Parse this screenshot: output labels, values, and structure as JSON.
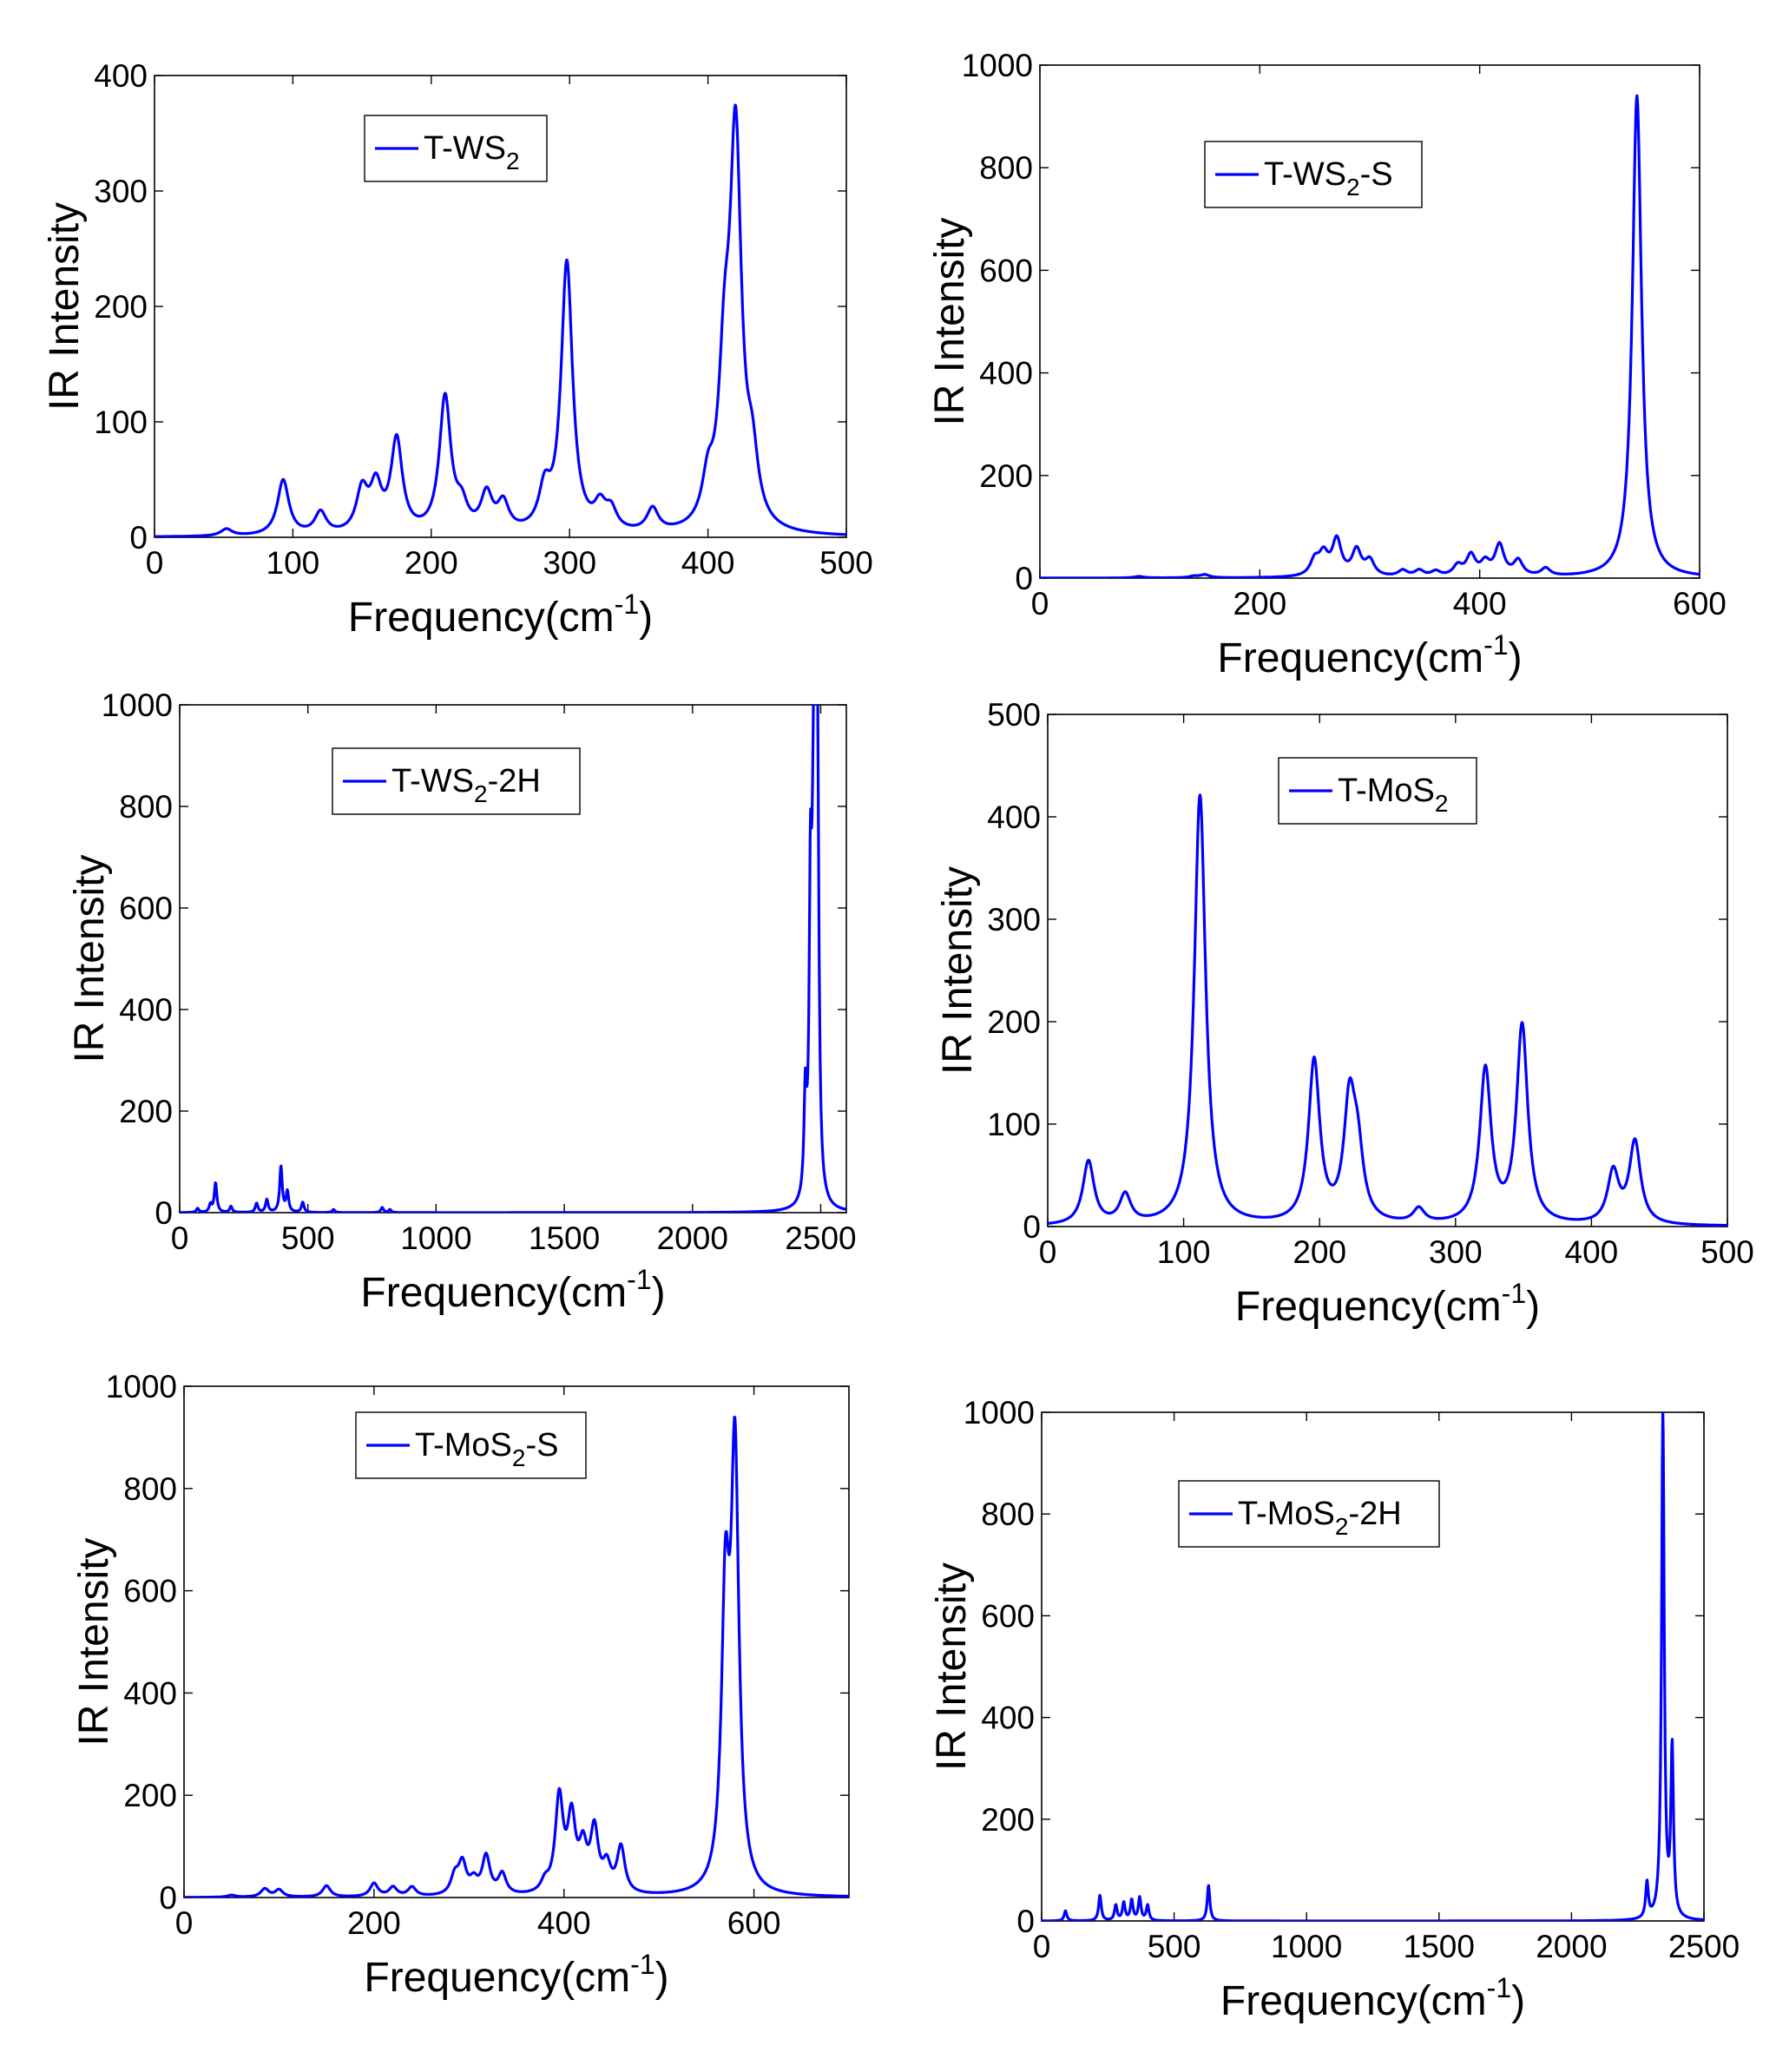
{
  "colors": {
    "line": "#0000ff",
    "axis": "#000000",
    "background": "#ffffff"
  },
  "chart_data": [
    {
      "type": "line",
      "legend": {
        "name": "T-WS",
        "sub": "2",
        "suffix": ""
      },
      "xlabel": {
        "base": "Frequency(cm",
        "sup": "-1",
        "tail": ")"
      },
      "ylabel": "IR Intensity",
      "xlim": [
        0,
        500
      ],
      "ylim": [
        0,
        400
      ],
      "xticks": [
        0,
        100,
        200,
        300,
        400,
        500
      ],
      "yticks": [
        0,
        100,
        200,
        300,
        400
      ],
      "gamma": 5,
      "peaks": [
        [
          52,
          6
        ],
        [
          93,
          48
        ],
        [
          120,
          19
        ],
        [
          150,
          36
        ],
        [
          160,
          38
        ],
        [
          175,
          80
        ],
        [
          210,
          117
        ],
        [
          222,
          20
        ],
        [
          240,
          32
        ],
        [
          252,
          24
        ],
        [
          282,
          33
        ],
        [
          298,
          234
        ],
        [
          322,
          20
        ],
        [
          330,
          17
        ],
        [
          360,
          20
        ],
        [
          400,
          35
        ],
        [
          412,
          120
        ],
        [
          420,
          330
        ],
        [
          432,
          50
        ]
      ]
    },
    {
      "type": "line",
      "legend": {
        "name": "T-WS",
        "sub": "2",
        "suffix": "-S"
      },
      "xlabel": {
        "base": "Frequency(cm",
        "sup": "-1",
        "tail": ")"
      },
      "ylabel": "IR Intensity",
      "xlim": [
        0,
        600
      ],
      "ylim": [
        0,
        1000
      ],
      "xticks": [
        0,
        200,
        400,
        600
      ],
      "yticks": [
        0,
        200,
        400,
        600,
        800,
        1000
      ],
      "gamma": 5,
      "peaks": [
        [
          90,
          3
        ],
        [
          140,
          3
        ],
        [
          150,
          6
        ],
        [
          250,
          30
        ],
        [
          258,
          40
        ],
        [
          270,
          70
        ],
        [
          288,
          50
        ],
        [
          300,
          30
        ],
        [
          330,
          12
        ],
        [
          345,
          12
        ],
        [
          360,
          10
        ],
        [
          380,
          20
        ],
        [
          392,
          40
        ],
        [
          405,
          25
        ],
        [
          418,
          60
        ],
        [
          435,
          30
        ],
        [
          460,
          15
        ],
        [
          543,
          940
        ]
      ]
    },
    {
      "type": "line",
      "legend": {
        "name": "T-WS",
        "sub": "2",
        "suffix": "-2H"
      },
      "xlabel": {
        "base": "Frequency(cm",
        "sup": "-1",
        "tail": ")"
      },
      "ylabel": "IR Intensity",
      "xlim": [
        0,
        2600
      ],
      "ylim": [
        0,
        1000
      ],
      "xticks": [
        0,
        500,
        1000,
        1500,
        2000,
        2500
      ],
      "yticks": [
        0,
        200,
        400,
        600,
        800,
        1000
      ],
      "gamma": 6,
      "peaks": [
        [
          70,
          8
        ],
        [
          120,
          15
        ],
        [
          140,
          58
        ],
        [
          200,
          12
        ],
        [
          300,
          18
        ],
        [
          340,
          25
        ],
        [
          395,
          90
        ],
        [
          420,
          40
        ],
        [
          480,
          20
        ],
        [
          600,
          6
        ],
        [
          790,
          10
        ],
        [
          820,
          6
        ],
        [
          2440,
          190
        ],
        [
          2460,
          545
        ],
        [
          2470,
          350
        ],
        [
          2478,
          1000
        ],
        [
          2488,
          700
        ]
      ]
    },
    {
      "type": "line",
      "legend": {
        "name": "T-MoS",
        "sub": "2",
        "suffix": ""
      },
      "xlabel": {
        "base": "Frequency(cm",
        "sup": "-1",
        "tail": ")"
      },
      "ylabel": "IR Intensity",
      "xlim": [
        0,
        500
      ],
      "ylim": [
        0,
        500
      ],
      "xticks": [
        0,
        100,
        200,
        300,
        400,
        500
      ],
      "yticks": [
        0,
        100,
        200,
        300,
        400,
        500
      ],
      "gamma": 5,
      "peaks": [
        [
          30,
          62
        ],
        [
          57,
          28
        ],
        [
          112,
          420
        ],
        [
          196,
          158
        ],
        [
          222,
          112
        ],
        [
          228,
          60
        ],
        [
          273,
          14
        ],
        [
          322,
          150
        ],
        [
          349,
          193
        ],
        [
          416,
          50
        ],
        [
          432,
          80
        ]
      ]
    },
    {
      "type": "line",
      "legend": {
        "name": "T-MoS",
        "sub": "2",
        "suffix": "-S"
      },
      "xlabel": {
        "base": "Frequency(cm",
        "sup": "-1",
        "tail": ")"
      },
      "ylabel": "IR Intensity",
      "xlim": [
        0,
        700
      ],
      "ylim": [
        0,
        1000
      ],
      "xticks": [
        0,
        200,
        400,
        600
      ],
      "yticks": [
        0,
        200,
        400,
        600,
        800,
        1000
      ],
      "gamma": 5,
      "peaks": [
        [
          50,
          4
        ],
        [
          85,
          16
        ],
        [
          100,
          14
        ],
        [
          150,
          22
        ],
        [
          200,
          26
        ],
        [
          220,
          18
        ],
        [
          240,
          18
        ],
        [
          285,
          35
        ],
        [
          293,
          60
        ],
        [
          305,
          25
        ],
        [
          318,
          75
        ],
        [
          335,
          40
        ],
        [
          380,
          20
        ],
        [
          395,
          185
        ],
        [
          408,
          140
        ],
        [
          420,
          80
        ],
        [
          432,
          120
        ],
        [
          445,
          50
        ],
        [
          460,
          90
        ],
        [
          570,
          540
        ],
        [
          580,
          830
        ]
      ]
    },
    {
      "type": "line",
      "legend": {
        "name": "T-MoS",
        "sub": "2",
        "suffix": "-2H"
      },
      "xlabel": {
        "base": "Frequency(cm",
        "sup": "-1",
        "tail": ")"
      },
      "ylabel": "IR Intensity",
      "xlim": [
        0,
        2500
      ],
      "ylim": [
        0,
        1000
      ],
      "xticks": [
        0,
        500,
        1000,
        1500,
        2000,
        2500
      ],
      "yticks": [
        0,
        200,
        400,
        600,
        800,
        1000
      ],
      "gamma": 6,
      "peaks": [
        [
          90,
          20
        ],
        [
          220,
          50
        ],
        [
          280,
          30
        ],
        [
          310,
          35
        ],
        [
          340,
          40
        ],
        [
          370,
          45
        ],
        [
          400,
          30
        ],
        [
          630,
          70
        ],
        [
          2285,
          70
        ],
        [
          2345,
          1000
        ],
        [
          2380,
          330
        ]
      ]
    }
  ]
}
